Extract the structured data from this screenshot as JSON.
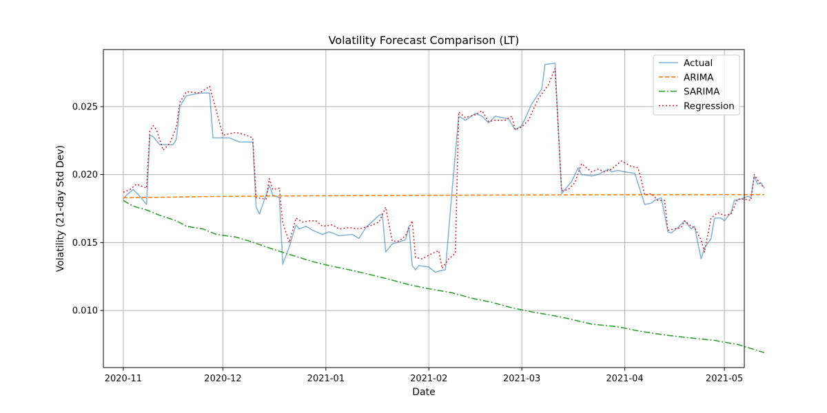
{
  "chart_data": {
    "type": "line",
    "title": "Volatility Forecast Comparison (LT)",
    "xlabel": "Date",
    "ylabel": "Volatility (21-day Std Dev)",
    "x_type": "date",
    "xlim": [
      "2020-10-26",
      "2021-05-07"
    ],
    "ylim": [
      0.0058,
      0.0292
    ],
    "grid": true,
    "legend_position": "top-right",
    "x_ticks": [
      {
        "value": "2020-11-01",
        "label": "2020-11"
      },
      {
        "value": "2020-12-01",
        "label": "2020-12"
      },
      {
        "value": "2021-01-01",
        "label": "2021-01"
      },
      {
        "value": "2021-02-01",
        "label": "2021-02"
      },
      {
        "value": "2021-03-01",
        "label": "2021-03"
      },
      {
        "value": "2021-04-01",
        "label": "2021-04"
      },
      {
        "value": "2021-05-01",
        "label": "2021-05"
      }
    ],
    "y_ticks": [
      {
        "value": 0.01,
        "label": "0.010"
      },
      {
        "value": 0.015,
        "label": "0.015"
      },
      {
        "value": 0.02,
        "label": "0.020"
      },
      {
        "value": 0.025,
        "label": "0.025"
      }
    ],
    "series": [
      {
        "name": "Actual",
        "color": "#1f77b4",
        "style": "solid",
        "opacity": 0.55,
        "points": [
          [
            "2020-11-01",
            0.0182
          ],
          [
            "2020-11-02",
            0.0185
          ],
          [
            "2020-11-04",
            0.0189
          ],
          [
            "2020-11-06",
            0.0184
          ],
          [
            "2020-11-08",
            0.0178
          ],
          [
            "2020-11-09",
            0.0229
          ],
          [
            "2020-11-10",
            0.0228
          ],
          [
            "2020-11-12",
            0.0222
          ],
          [
            "2020-11-14",
            0.0222
          ],
          [
            "2020-11-16",
            0.0222
          ],
          [
            "2020-11-17",
            0.0226
          ],
          [
            "2020-11-18",
            0.025
          ],
          [
            "2020-11-20",
            0.0258
          ],
          [
            "2020-11-24",
            0.026
          ],
          [
            "2020-11-27",
            0.026
          ],
          [
            "2020-11-28",
            0.0227
          ],
          [
            "2020-12-03",
            0.0227
          ],
          [
            "2020-12-06",
            0.0224
          ],
          [
            "2020-12-09",
            0.0224
          ],
          [
            "2020-12-10",
            0.0224
          ],
          [
            "2020-12-11",
            0.0176
          ],
          [
            "2020-12-12",
            0.0171
          ],
          [
            "2020-12-15",
            0.0192
          ],
          [
            "2020-12-16",
            0.0185
          ],
          [
            "2020-12-18",
            0.0183
          ],
          [
            "2020-12-19",
            0.0134
          ],
          [
            "2020-12-21",
            0.0147
          ],
          [
            "2020-12-23",
            0.0163
          ],
          [
            "2020-12-24",
            0.016
          ],
          [
            "2020-12-26",
            0.0162
          ],
          [
            "2020-12-28",
            0.0159
          ],
          [
            "2020-12-31",
            0.0156
          ],
          [
            "2021-01-02",
            0.0158
          ],
          [
            "2021-01-05",
            0.0155
          ],
          [
            "2021-01-09",
            0.0156
          ],
          [
            "2021-01-11",
            0.0153
          ],
          [
            "2021-01-13",
            0.0161
          ],
          [
            "2021-01-17",
            0.017
          ],
          [
            "2021-01-18",
            0.0171
          ],
          [
            "2021-01-19",
            0.0143
          ],
          [
            "2021-01-21",
            0.0149
          ],
          [
            "2021-01-25",
            0.0152
          ],
          [
            "2021-01-26",
            0.0162
          ],
          [
            "2021-01-27",
            0.0133
          ],
          [
            "2021-01-28",
            0.013
          ],
          [
            "2021-01-29",
            0.0133
          ],
          [
            "2021-02-01",
            0.0132
          ],
          [
            "2021-02-03",
            0.0128
          ],
          [
            "2021-02-04",
            0.0129
          ],
          [
            "2021-02-06",
            0.013
          ],
          [
            "2021-02-08",
            0.0188
          ],
          [
            "2021-02-10",
            0.0243
          ],
          [
            "2021-02-12",
            0.024
          ],
          [
            "2021-02-15",
            0.0245
          ],
          [
            "2021-02-17",
            0.0243
          ],
          [
            "2021-02-19",
            0.0238
          ],
          [
            "2021-02-21",
            0.0243
          ],
          [
            "2021-02-25",
            0.0241
          ],
          [
            "2021-02-27",
            0.0233
          ],
          [
            "2021-03-01",
            0.0236
          ],
          [
            "2021-03-04",
            0.0252
          ],
          [
            "2021-03-07",
            0.0263
          ],
          [
            "2021-03-08",
            0.0281
          ],
          [
            "2021-03-11",
            0.0282
          ],
          [
            "2021-03-13",
            0.0186
          ],
          [
            "2021-03-16",
            0.0195
          ],
          [
            "2021-03-18",
            0.0205
          ],
          [
            "2021-03-19",
            0.02
          ],
          [
            "2021-03-22",
            0.0199
          ],
          [
            "2021-03-24",
            0.02
          ],
          [
            "2021-03-27",
            0.0204
          ],
          [
            "2021-03-28",
            0.0202
          ],
          [
            "2021-03-30",
            0.0203
          ],
          [
            "2021-04-01",
            0.0202
          ],
          [
            "2021-04-04",
            0.0201
          ],
          [
            "2021-04-06",
            0.0186
          ],
          [
            "2021-04-07",
            0.0178
          ],
          [
            "2021-04-09",
            0.0179
          ],
          [
            "2021-04-10",
            0.0181
          ],
          [
            "2021-04-12",
            0.0183
          ],
          [
            "2021-04-14",
            0.0158
          ],
          [
            "2021-04-15",
            0.0157
          ],
          [
            "2021-04-17",
            0.0161
          ],
          [
            "2021-04-19",
            0.0166
          ],
          [
            "2021-04-21",
            0.016
          ],
          [
            "2021-04-22",
            0.0162
          ],
          [
            "2021-04-24",
            0.0138
          ],
          [
            "2021-04-25",
            0.0146
          ],
          [
            "2021-04-27",
            0.0153
          ],
          [
            "2021-04-28",
            0.0168
          ],
          [
            "2021-04-30",
            0.0168
          ],
          [
            "2021-05-01",
            0.0166
          ],
          [
            "2021-05-03",
            0.0172
          ],
          [
            "2021-05-04",
            0.0181
          ],
          [
            "2021-05-06",
            0.0182
          ],
          [
            "2021-05-08",
            0.0184
          ],
          [
            "2021-05-09",
            0.0183
          ],
          [
            "2021-05-10",
            0.0199
          ],
          [
            "2021-05-11",
            0.0193
          ],
          [
            "2021-05-12",
            0.0194
          ],
          [
            "2021-05-13",
            0.019
          ]
        ]
      },
      {
        "name": "ARIMA",
        "color": "#ff7f0e",
        "style": "dashed",
        "opacity": 1,
        "points": [
          [
            "2020-11-01",
            0.0183
          ],
          [
            "2020-11-10",
            0.01832
          ],
          [
            "2020-11-25",
            0.01838
          ],
          [
            "2020-12-15",
            0.01842
          ],
          [
            "2021-01-15",
            0.01846
          ],
          [
            "2021-02-15",
            0.01849
          ],
          [
            "2021-03-15",
            0.01851
          ],
          [
            "2021-04-15",
            0.01852
          ],
          [
            "2021-05-13",
            0.01853
          ]
        ]
      },
      {
        "name": "SARIMA",
        "color": "#2ca02c",
        "style": "dashdot",
        "opacity": 1,
        "points": [
          [
            "2020-11-01",
            0.0181
          ],
          [
            "2020-11-03",
            0.0178
          ],
          [
            "2020-11-05",
            0.0176
          ],
          [
            "2020-11-08",
            0.0174
          ],
          [
            "2020-11-12",
            0.017
          ],
          [
            "2020-11-17",
            0.0166
          ],
          [
            "2020-11-20",
            0.0162
          ],
          [
            "2020-11-25",
            0.016
          ],
          [
            "2020-11-29",
            0.0156
          ],
          [
            "2020-12-05",
            0.0154
          ],
          [
            "2020-12-09",
            0.0151
          ],
          [
            "2020-12-15",
            0.0146
          ],
          [
            "2020-12-20",
            0.0142
          ],
          [
            "2020-12-24",
            0.0139
          ],
          [
            "2020-12-28",
            0.0136
          ],
          [
            "2021-01-02",
            0.0133
          ],
          [
            "2021-01-08",
            0.013
          ],
          [
            "2021-01-15",
            0.0126
          ],
          [
            "2021-01-20",
            0.0123
          ],
          [
            "2021-01-26",
            0.0119
          ],
          [
            "2021-02-01",
            0.0116
          ],
          [
            "2021-02-08",
            0.0113
          ],
          [
            "2021-02-14",
            0.0109
          ],
          [
            "2021-02-20",
            0.0106
          ],
          [
            "2021-02-26",
            0.0102
          ],
          [
            "2021-03-04",
            0.0099
          ],
          [
            "2021-03-11",
            0.0096
          ],
          [
            "2021-03-15",
            0.0094
          ],
          [
            "2021-03-22",
            0.009
          ],
          [
            "2021-03-30",
            0.0088
          ],
          [
            "2021-04-05",
            0.0085
          ],
          [
            "2021-04-13",
            0.0082
          ],
          [
            "2021-04-20",
            0.008
          ],
          [
            "2021-04-28",
            0.0078
          ],
          [
            "2021-05-05",
            0.0075
          ],
          [
            "2021-05-13",
            0.0069
          ]
        ]
      },
      {
        "name": "Regression",
        "color": "#d62728",
        "style": "dotted",
        "opacity": 1,
        "points": [
          [
            "2020-11-01",
            0.0187
          ],
          [
            "2020-11-03",
            0.0189
          ],
          [
            "2020-11-05",
            0.0193
          ],
          [
            "2020-11-07",
            0.0191
          ],
          [
            "2020-11-08",
            0.019
          ],
          [
            "2020-11-09",
            0.0232
          ],
          [
            "2020-11-10",
            0.0236
          ],
          [
            "2020-11-11",
            0.0233
          ],
          [
            "2020-11-13",
            0.0218
          ],
          [
            "2020-11-15",
            0.0223
          ],
          [
            "2020-11-17",
            0.0235
          ],
          [
            "2020-11-18",
            0.0253
          ],
          [
            "2020-11-20",
            0.0261
          ],
          [
            "2020-11-24",
            0.026
          ],
          [
            "2020-11-27",
            0.0265
          ],
          [
            "2020-11-28",
            0.0256
          ],
          [
            "2020-12-01",
            0.0229
          ],
          [
            "2020-12-05",
            0.0231
          ],
          [
            "2020-12-08",
            0.0229
          ],
          [
            "2020-12-10",
            0.0227
          ],
          [
            "2020-12-11",
            0.0183
          ],
          [
            "2020-12-14",
            0.0182
          ],
          [
            "2020-12-15",
            0.0197
          ],
          [
            "2020-12-16",
            0.0189
          ],
          [
            "2020-12-18",
            0.019
          ],
          [
            "2020-12-19",
            0.0165
          ],
          [
            "2020-12-21",
            0.015
          ],
          [
            "2020-12-23",
            0.0168
          ],
          [
            "2020-12-25",
            0.0165
          ],
          [
            "2020-12-27",
            0.0166
          ],
          [
            "2020-12-29",
            0.0166
          ],
          [
            "2020-12-31",
            0.0162
          ],
          [
            "2021-01-03",
            0.0163
          ],
          [
            "2021-01-05",
            0.016
          ],
          [
            "2021-01-08",
            0.0161
          ],
          [
            "2021-01-11",
            0.016
          ],
          [
            "2021-01-14",
            0.0162
          ],
          [
            "2021-01-17",
            0.0165
          ],
          [
            "2021-01-19",
            0.0176
          ],
          [
            "2021-01-21",
            0.0151
          ],
          [
            "2021-01-23",
            0.0151
          ],
          [
            "2021-01-25",
            0.0155
          ],
          [
            "2021-01-27",
            0.0166
          ],
          [
            "2021-01-28",
            0.0139
          ],
          [
            "2021-01-30",
            0.0138
          ],
          [
            "2021-02-02",
            0.0142
          ],
          [
            "2021-02-04",
            0.0144
          ],
          [
            "2021-02-05",
            0.0131
          ],
          [
            "2021-02-07",
            0.0138
          ],
          [
            "2021-02-09",
            0.0142
          ],
          [
            "2021-02-10",
            0.0246
          ],
          [
            "2021-02-12",
            0.0242
          ],
          [
            "2021-02-15",
            0.0244
          ],
          [
            "2021-02-17",
            0.0247
          ],
          [
            "2021-02-19",
            0.0239
          ],
          [
            "2021-02-21",
            0.024
          ],
          [
            "2021-02-24",
            0.024
          ],
          [
            "2021-02-26",
            0.0243
          ],
          [
            "2021-02-27",
            0.0233
          ],
          [
            "2021-03-01",
            0.0235
          ],
          [
            "2021-03-03",
            0.024
          ],
          [
            "2021-03-06",
            0.0256
          ],
          [
            "2021-03-09",
            0.0266
          ],
          [
            "2021-03-11",
            0.0278
          ],
          [
            "2021-03-13",
            0.0188
          ],
          [
            "2021-03-15",
            0.0189
          ],
          [
            "2021-03-17",
            0.0194
          ],
          [
            "2021-03-19",
            0.0208
          ],
          [
            "2021-03-22",
            0.0202
          ],
          [
            "2021-03-24",
            0.0204
          ],
          [
            "2021-03-26",
            0.0202
          ],
          [
            "2021-03-28",
            0.0204
          ],
          [
            "2021-03-31",
            0.021
          ],
          [
            "2021-04-03",
            0.0206
          ],
          [
            "2021-04-05",
            0.0205
          ],
          [
            "2021-04-06",
            0.0196
          ],
          [
            "2021-04-07",
            0.0185
          ],
          [
            "2021-04-09",
            0.0186
          ],
          [
            "2021-04-11",
            0.0181
          ],
          [
            "2021-04-13",
            0.0181
          ],
          [
            "2021-04-14",
            0.0159
          ],
          [
            "2021-04-16",
            0.016
          ],
          [
            "2021-04-18",
            0.0161
          ],
          [
            "2021-04-19",
            0.0166
          ],
          [
            "2021-04-21",
            0.0162
          ],
          [
            "2021-04-22",
            0.0161
          ],
          [
            "2021-04-24",
            0.0152
          ],
          [
            "2021-04-25",
            0.0143
          ],
          [
            "2021-04-27",
            0.0168
          ],
          [
            "2021-04-29",
            0.0172
          ],
          [
            "2021-05-01",
            0.017
          ],
          [
            "2021-05-03",
            0.0171
          ],
          [
            "2021-05-05",
            0.0182
          ],
          [
            "2021-05-07",
            0.0182
          ],
          [
            "2021-05-09",
            0.0181
          ],
          [
            "2021-05-10",
            0.02
          ],
          [
            "2021-05-11",
            0.0196
          ],
          [
            "2021-05-12",
            0.0193
          ],
          [
            "2021-05-13",
            0.019
          ]
        ]
      }
    ]
  }
}
